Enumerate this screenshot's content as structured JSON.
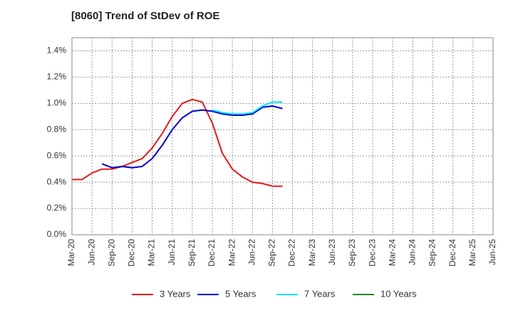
{
  "chart_data": {
    "type": "line",
    "title": "[8060]  Trend of StDev of ROE",
    "xlabel": "",
    "ylabel": "",
    "x_tick_labels": [
      "Mar-20",
      "Jun-20",
      "Sep-20",
      "Dec-20",
      "Mar-21",
      "Jun-21",
      "Sep-21",
      "Dec-21",
      "Mar-22",
      "Jun-22",
      "Sep-22",
      "Dec-22",
      "Mar-23",
      "Jun-23",
      "Sep-23",
      "Dec-23",
      "Mar-24",
      "Jun-24",
      "Sep-24",
      "Dec-24",
      "Mar-25",
      "Jun-25"
    ],
    "y_tick_labels": [
      "0.0%",
      "0.2%",
      "0.4%",
      "0.6%",
      "0.8%",
      "1.0%",
      "1.2%",
      "1.4%"
    ],
    "ylim": [
      0,
      1.5
    ],
    "grid": true,
    "legend_position": "bottom",
    "series": [
      {
        "name": "3 Years",
        "color": "#e31a1c",
        "values": [
          0.42,
          0.42,
          0.47,
          0.5,
          0.5,
          0.52,
          0.55,
          0.58,
          0.66,
          0.77,
          0.9,
          1.0,
          1.03,
          1.01,
          0.85,
          0.62,
          0.5,
          0.44,
          0.4,
          0.39,
          0.37,
          0.37,
          null
        ]
      },
      {
        "name": "5 Years",
        "color": "#0000cc",
        "values": [
          null,
          null,
          null,
          0.54,
          0.51,
          0.52,
          0.51,
          0.52,
          0.58,
          0.68,
          0.8,
          0.89,
          0.94,
          0.95,
          0.94,
          0.92,
          0.91,
          0.91,
          0.92,
          0.97,
          0.98,
          0.96,
          null
        ]
      },
      {
        "name": "7 Years",
        "color": "#00e5ff",
        "values": [
          null,
          null,
          null,
          null,
          null,
          null,
          null,
          null,
          null,
          null,
          null,
          null,
          null,
          null,
          0.95,
          0.93,
          0.92,
          0.92,
          0.93,
          0.98,
          1.01,
          1.01,
          null
        ]
      },
      {
        "name": "10 Years",
        "color": "#228b22",
        "values": [
          null,
          null,
          null,
          null,
          null,
          null,
          null,
          null,
          null,
          null,
          null,
          null,
          null,
          null,
          null,
          null,
          null,
          null,
          null,
          null,
          null,
          null,
          null
        ]
      }
    ]
  }
}
